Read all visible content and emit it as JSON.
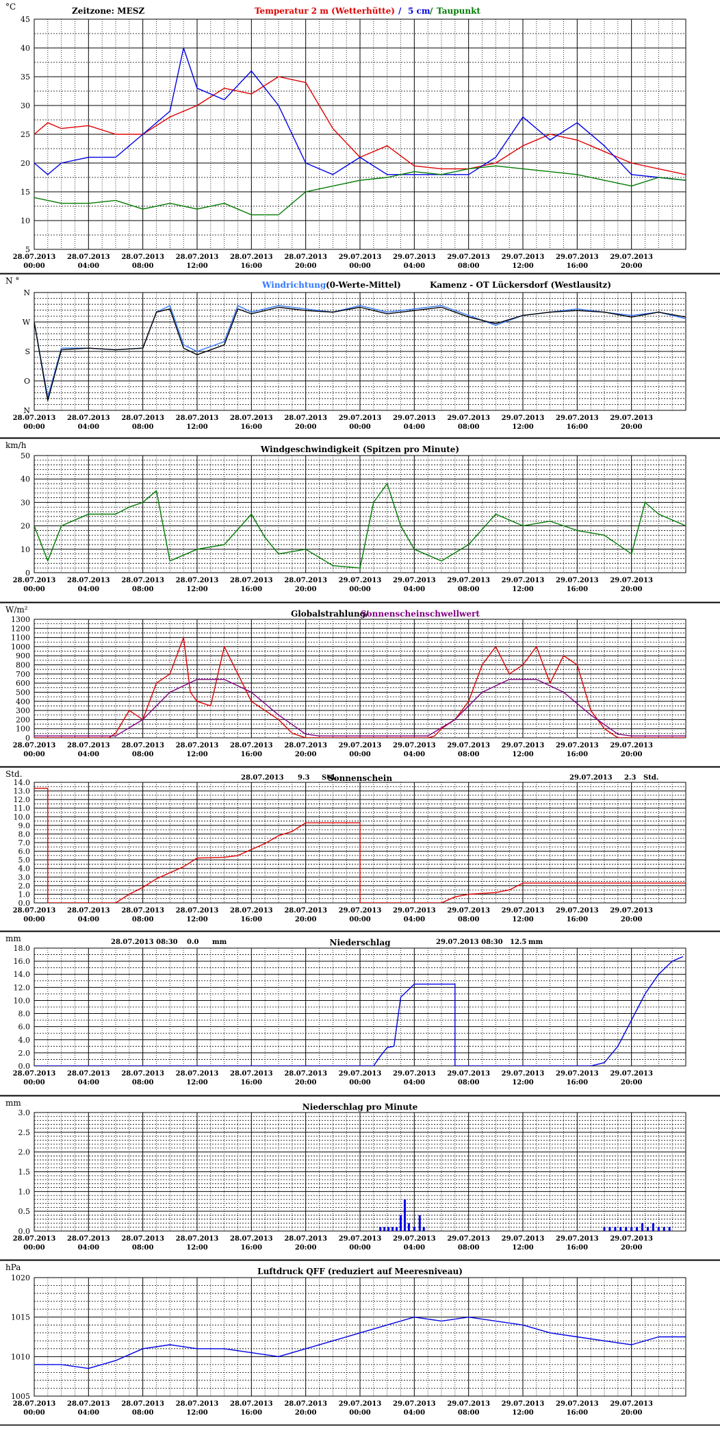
{
  "ticks": [
    "28.07.2013\n00:00",
    "28.07.2013\n04:00",
    "28.07.2013\n08:00",
    "28.07.2013\n12:00",
    "28.07.2013\n16:00",
    "28.07.2013\n20:00",
    "29.07.2013\n00:00",
    "29.07.2013\n04:00",
    "29.07.2013\n08:00",
    "29.07.2013\n12:00",
    "29.07.2013\n16:00",
    "29.07.2013\n20:00"
  ],
  "colors": {
    "red": "#e00000",
    "blue": "#0000e6",
    "lightblue": "#3377ff",
    "green": "#007a00",
    "purple": "#800080",
    "black": "#000000"
  },
  "chart_data": [
    {
      "type": "line",
      "unit": "°C",
      "ylim": [
        5,
        45
      ],
      "yticks": [
        5,
        10,
        15,
        20,
        25,
        30,
        35,
        40,
        45
      ],
      "title_parts": [
        {
          "text": "Zeitzone: MESZ",
          "color": "#000000"
        },
        {
          "text": "Temperatur 2 m (Wetterhütte)",
          "color": "#e00000"
        },
        {
          "text": "/",
          "color": "#0000e6"
        },
        {
          "text": "5 cm",
          "color": "#0000e6"
        },
        {
          "text": "/",
          "color": "#007a00"
        },
        {
          "text": "Taupunkt",
          "color": "#007a00"
        }
      ],
      "series": [
        {
          "name": "Temperatur 2 m (Wetterhütte)",
          "color": "#e00000",
          "x": [
            0,
            1,
            2,
            4,
            6,
            8,
            10,
            12,
            14,
            16,
            18,
            20,
            22,
            24,
            26,
            28,
            30,
            32,
            34,
            36,
            38,
            40,
            42,
            44,
            46,
            48
          ],
          "y": [
            25,
            27,
            26,
            26.5,
            25,
            25,
            28,
            30,
            33,
            32,
            35,
            34,
            26,
            21,
            23,
            19.5,
            19,
            19,
            20,
            23,
            25,
            24,
            22,
            20,
            19,
            18
          ]
        },
        {
          "name": "5 cm",
          "color": "#0000e6",
          "x": [
            0,
            1,
            2,
            4,
            6,
            8,
            10,
            11,
            12,
            14,
            16,
            18,
            20,
            22,
            24,
            26,
            28,
            30,
            32,
            34,
            36,
            38,
            40,
            42,
            44,
            46,
            48
          ],
          "y": [
            20,
            18,
            20,
            21,
            21,
            25,
            29,
            40,
            33,
            31,
            36,
            30,
            20,
            18,
            21,
            18,
            18,
            18,
            18,
            21,
            28,
            24,
            27,
            23,
            18,
            17.5,
            17
          ]
        },
        {
          "name": "Taupunkt",
          "color": "#007a00",
          "x": [
            0,
            2,
            4,
            6,
            8,
            10,
            12,
            14,
            16,
            18,
            20,
            22,
            24,
            26,
            28,
            30,
            32,
            34,
            36,
            38,
            40,
            42,
            44,
            46,
            48
          ],
          "y": [
            14,
            13,
            13,
            13.5,
            12,
            13,
            12,
            13,
            11,
            11,
            15,
            16,
            17,
            17.5,
            18.5,
            18,
            19,
            19.5,
            19,
            18.5,
            18,
            17,
            16,
            17.5,
            17
          ]
        }
      ]
    },
    {
      "type": "line",
      "unit": "N °",
      "ylim": [
        0,
        360
      ],
      "yticks": [
        0,
        90,
        180,
        270,
        360
      ],
      "ylabels": {
        "0": "N",
        "90": "O",
        "180": "S",
        "270": "W",
        "360": "N"
      },
      "title_parts": [
        {
          "text": "Windrichtung",
          "color": "#3377ff"
        },
        {
          "text": "(0-Werte-Mittel)",
          "color": "#000000"
        },
        {
          "text": "Kamenz - OT Lückersdorf (Westlausitz)",
          "color": "#000000"
        }
      ],
      "series": [
        {
          "name": "Windrichtung",
          "color": "#3377ff",
          "x": [
            0,
            1,
            2,
            4,
            6,
            8,
            9,
            10,
            11,
            12,
            14,
            15,
            16,
            18,
            20,
            22,
            24,
            26,
            28,
            30,
            32,
            34,
            36,
            38,
            40,
            42,
            44,
            46,
            48
          ],
          "y": [
            270,
            40,
            190,
            190,
            185,
            190,
            300,
            320,
            200,
            180,
            210,
            320,
            300,
            320,
            310,
            300,
            320,
            300,
            310,
            320,
            290,
            260,
            290,
            300,
            310,
            300,
            290,
            300,
            280
          ]
        },
        {
          "name": "Mittel",
          "color": "#000000",
          "x": [
            0,
            1,
            2,
            4,
            6,
            8,
            9,
            10,
            11,
            12,
            14,
            15,
            16,
            18,
            20,
            22,
            24,
            26,
            28,
            30,
            32,
            34,
            36,
            38,
            40,
            42,
            44,
            46,
            48
          ],
          "y": [
            270,
            30,
            185,
            190,
            185,
            190,
            300,
            310,
            190,
            170,
            200,
            310,
            295,
            315,
            305,
            300,
            315,
            295,
            305,
            315,
            285,
            265,
            290,
            300,
            305,
            300,
            285,
            300,
            285
          ]
        }
      ]
    },
    {
      "type": "line",
      "unit": "km/h",
      "ylim": [
        0,
        50
      ],
      "yticks": [
        0,
        10,
        20,
        30,
        40,
        50
      ],
      "title_parts": [
        {
          "text": "Windgeschwindigkeit (Spitzen pro Minute)",
          "color": "#000000"
        }
      ],
      "series": [
        {
          "name": "Windgeschwindigkeit",
          "color": "#007a00",
          "x": [
            0,
            1,
            2,
            4,
            6,
            7,
            8,
            9,
            10,
            12,
            14,
            16,
            17,
            18,
            20,
            22,
            24,
            25,
            26,
            27,
            28,
            30,
            32,
            34,
            36,
            38,
            40,
            42,
            44,
            45,
            46,
            48
          ],
          "y": [
            20,
            5,
            20,
            25,
            25,
            28,
            30,
            35,
            5,
            10,
            12,
            25,
            15,
            8,
            10,
            3,
            2,
            30,
            38,
            20,
            10,
            5,
            12,
            25,
            20,
            22,
            18,
            16,
            8,
            30,
            25,
            20
          ]
        }
      ]
    },
    {
      "type": "line",
      "unit": "W/m²",
      "ylim": [
        0,
        1300
      ],
      "yticks": [
        0,
        100,
        200,
        300,
        400,
        500,
        600,
        700,
        800,
        900,
        1000,
        1100,
        1200,
        1300
      ],
      "title_parts": [
        {
          "text": "Globalstrahlung/",
          "color": "#000000"
        },
        {
          "text": "Sonnenscheinschwellwert",
          "color": "#800080"
        }
      ],
      "series": [
        {
          "name": "Globalstrahlung",
          "color": "#e00000",
          "x": [
            0,
            5.5,
            6,
            7,
            8,
            9,
            10,
            11,
            11.5,
            12,
            13,
            14,
            15,
            16,
            17,
            18,
            19,
            20,
            29,
            29.5,
            30,
            31,
            32,
            33,
            34,
            35,
            36,
            37,
            38,
            39,
            40,
            41,
            42,
            43,
            48
          ],
          "y": [
            0,
            0,
            50,
            300,
            200,
            600,
            700,
            1100,
            500,
            400,
            350,
            1000,
            700,
            400,
            300,
            200,
            50,
            0,
            0,
            20,
            100,
            200,
            400,
            800,
            1000,
            700,
            800,
            1000,
            600,
            900,
            800,
            300,
            100,
            0,
            0
          ]
        },
        {
          "name": "Sonnenscheinschwellwert",
          "color": "#800080",
          "x": [
            0,
            6,
            8,
            10,
            12,
            14,
            16,
            18,
            20,
            21,
            29,
            31,
            33,
            35,
            37,
            39,
            41,
            43,
            44,
            48
          ],
          "y": [
            20,
            20,
            200,
            500,
            640,
            640,
            500,
            250,
            40,
            20,
            20,
            200,
            500,
            640,
            640,
            500,
            250,
            40,
            20,
            20
          ]
        }
      ]
    },
    {
      "type": "line",
      "unit": "Std.",
      "ylim": [
        0,
        14
      ],
      "yticks": [
        0,
        1,
        2,
        3,
        4,
        5,
        6,
        7,
        8,
        9,
        10,
        11,
        12,
        13,
        14
      ],
      "title_parts": [
        {
          "text": "Sonnenschein",
          "color": "#000000"
        }
      ],
      "header": {
        "d1": "28.07.2013",
        "v1": "9.3",
        "u1": "Std.",
        "d2": "29.07.2013",
        "v2": "2.3",
        "u2": "Std."
      },
      "series": [
        {
          "name": "Sonnenschein",
          "color": "#e00000",
          "x": [
            0,
            1,
            1,
            6,
            7,
            8,
            9,
            10,
            11,
            12,
            14,
            15,
            16,
            17,
            18,
            19,
            20,
            24,
            24,
            30,
            31,
            32,
            34,
            35,
            36,
            48
          ],
          "y": [
            13.3,
            13.3,
            0,
            0,
            1,
            1.8,
            2.8,
            3.5,
            4.2,
            5.2,
            5.3,
            5.5,
            6.2,
            6.9,
            7.8,
            8.3,
            9.3,
            9.3,
            0,
            0,
            0.7,
            1.0,
            1.2,
            1.5,
            2.3,
            2.3
          ]
        }
      ]
    },
    {
      "type": "line",
      "unit": "mm",
      "ylim": [
        0,
        18
      ],
      "yticks": [
        0,
        2,
        4,
        6,
        8,
        10,
        12,
        14,
        16,
        18
      ],
      "title_parts": [
        {
          "text": "Niederschlag",
          "color": "#000000"
        }
      ],
      "header": {
        "d1": "28.07.2013 08:30",
        "v1": "0.0",
        "u1": "mm",
        "d2": "29.07.2013 08:30",
        "v2": "12.5",
        "u2": "mm"
      },
      "series": [
        {
          "name": "Niederschlag",
          "color": "#0000e6",
          "x": [
            0,
            25,
            25.5,
            26,
            26.5,
            27,
            28,
            29,
            30,
            31,
            31,
            32,
            41,
            42,
            43,
            44,
            45,
            46,
            47,
            47.8
          ],
          "y": [
            0,
            0,
            1.5,
            2.8,
            3,
            10.5,
            12.5,
            12.5,
            12.5,
            12.5,
            0,
            0,
            0,
            0.5,
            3,
            7,
            11,
            14,
            16,
            16.7
          ]
        }
      ]
    },
    {
      "type": "bar",
      "unit": "mm",
      "ylim": [
        0,
        3
      ],
      "yticks": [
        0,
        0.5,
        1,
        1.5,
        2,
        2.5,
        3
      ],
      "title_parts": [
        {
          "text": "Niederschlag pro Minute",
          "color": "#000000"
        }
      ],
      "series": [
        {
          "name": "Niederschlag pro Minute",
          "color": "#0000e6",
          "x": [
            25.5,
            25.8,
            26.1,
            26.4,
            26.7,
            27.0,
            27.3,
            27.6,
            28.0,
            28.4,
            28.7,
            42.0,
            42.4,
            42.8,
            43.2,
            43.6,
            44.0,
            44.4,
            44.8,
            45.2,
            45.6,
            46.0,
            46.4,
            46.8
          ],
          "y": [
            0.1,
            0.1,
            0.1,
            0.1,
            0.1,
            0.4,
            0.8,
            0.2,
            0.1,
            0.4,
            0.1,
            0.1,
            0.1,
            0.1,
            0.1,
            0.1,
            0.1,
            0.1,
            0.2,
            0.1,
            0.2,
            0.1,
            0.1,
            0.1
          ]
        }
      ]
    },
    {
      "type": "line",
      "unit": "hPa",
      "ylim": [
        1005,
        1020
      ],
      "yticks": [
        1005,
        1010,
        1015,
        1020
      ],
      "title_parts": [
        {
          "text": "Luftdruck QFF (reduziert auf Meeresniveau)",
          "color": "#000000"
        }
      ],
      "series": [
        {
          "name": "Luftdruck QFF",
          "color": "#0000e6",
          "x": [
            0,
            2,
            4,
            6,
            8,
            10,
            12,
            14,
            16,
            18,
            20,
            22,
            24,
            26,
            28,
            30,
            32,
            34,
            36,
            38,
            40,
            42,
            44,
            46,
            48
          ],
          "y": [
            1009,
            1009,
            1008.5,
            1009.5,
            1011,
            1011.5,
            1011,
            1011,
            1010.5,
            1010,
            1011,
            1012,
            1013,
            1014,
            1015,
            1014.5,
            1015,
            1014.5,
            1014,
            1013,
            1012.5,
            1012,
            1011.5,
            1012.5,
            1012.5
          ]
        }
      ]
    }
  ]
}
